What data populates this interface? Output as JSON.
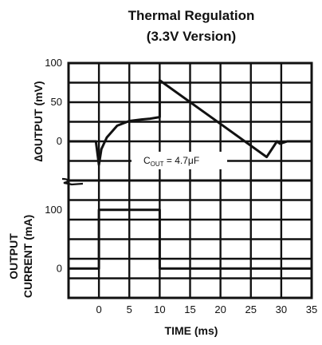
{
  "chart_data": [
    {
      "type": "line",
      "title_line1": "Thermal Regulation",
      "title_line2": "(3.3V Version)",
      "ylabel": "∆OUTPUT (mV)",
      "yticks": [
        100,
        50,
        0
      ],
      "ylim": [
        -50,
        100
      ],
      "xlim": [
        -5,
        35
      ],
      "grid": true,
      "annotation": {
        "prefix": "C",
        "subscript": "OUT",
        "suffix": " = 4.7μF"
      },
      "x": [
        -5,
        -0.5,
        0,
        0.4,
        1.3,
        3,
        5,
        7,
        8.4,
        10,
        10,
        27.6,
        29.3,
        29.8,
        31,
        35
      ],
      "y": [
        0,
        0,
        -30,
        -10,
        5,
        20,
        26,
        28,
        29,
        31,
        78,
        -20,
        0,
        -3,
        0,
        0
      ]
    },
    {
      "type": "line",
      "ylabel_line1": "OUTPUT",
      "ylabel_line2": "CURRENT (mA)",
      "yticks": [
        100,
        0
      ],
      "ylim": [
        -50,
        150
      ],
      "xlim": [
        -5,
        35
      ],
      "xticks": [
        0,
        5,
        10,
        15,
        20,
        25,
        30,
        35
      ],
      "xlabel": "TIME (ms)",
      "grid": true,
      "x": [
        -5,
        0,
        0,
        10,
        10,
        35
      ],
      "y": [
        0,
        0,
        100,
        100,
        0,
        0
      ]
    }
  ]
}
